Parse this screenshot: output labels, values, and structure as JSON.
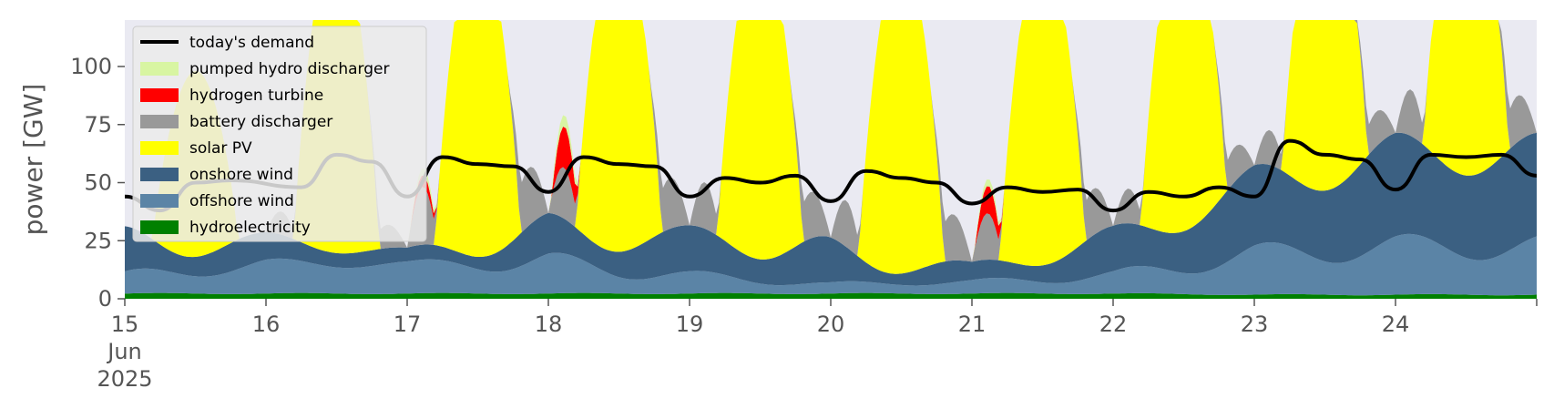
{
  "chart_data": {
    "type": "area",
    "title": "",
    "xlabel": "",
    "ylabel": "power [GW]",
    "ylim": [
      0,
      120
    ],
    "yticks": [
      0,
      25,
      50,
      75,
      100
    ],
    "x_start": "2025-06-15",
    "x_end": "2025-06-25",
    "xtick_labels": [
      "15",
      "16",
      "17",
      "18",
      "19",
      "20",
      "21",
      "22",
      "23",
      "24"
    ],
    "xtick_sublabels": [
      "Jun",
      "2025"
    ],
    "grid": false,
    "background_color": "#eaeaf2",
    "legend_position": "top-left",
    "demand_color": "#000000",
    "series": [
      {
        "name": "hydroelectricity",
        "color": "#008000",
        "role": "stack",
        "daily_max": [
          2.5,
          2.5,
          2.5,
          2.5,
          2.5,
          2.5,
          2.5,
          2.5,
          2.0,
          2.0
        ],
        "daily_min": [
          2.0,
          2.0,
          2.0,
          2.0,
          2.0,
          2.0,
          2.0,
          2.0,
          1.5,
          1.5
        ]
      },
      {
        "name": "offshore wind",
        "color": "#5b84a6",
        "role": "stack",
        "daily_max": [
          10,
          15,
          14,
          18,
          10,
          5,
          6,
          10,
          22,
          26
        ],
        "daily_min": [
          4,
          10,
          12,
          8,
          5,
          3,
          4,
          5,
          12,
          15
        ]
      },
      {
        "name": "onshore wind",
        "color": "#3b6082",
        "role": "stack",
        "daily_max": [
          20,
          12,
          6,
          18,
          20,
          20,
          8,
          20,
          35,
          45
        ],
        "daily_min": [
          8,
          8,
          4,
          6,
          15,
          5,
          4,
          10,
          25,
          35
        ]
      },
      {
        "name": "solar PV",
        "color": "#ffff00",
        "role": "stack",
        "daily_max": [
          80,
          140,
          140,
          140,
          140,
          140,
          140,
          140,
          140,
          140
        ],
        "daily_min": [
          0,
          0,
          0,
          0,
          0,
          0,
          0,
          0,
          0,
          0
        ]
      },
      {
        "name": "battery discharger",
        "color": "#999999",
        "role": "stack",
        "daily_max": [
          0,
          10,
          25,
          22,
          20,
          20,
          20,
          15,
          15,
          20
        ],
        "daily_min": [
          0,
          0,
          0,
          0,
          0,
          0,
          0,
          0,
          0,
          0
        ]
      },
      {
        "name": "hydrogen turbine",
        "color": "#ff0000",
        "role": "stack",
        "daily_max": [
          0,
          0,
          5,
          18,
          0,
          0,
          12,
          0,
          0,
          0
        ],
        "daily_min": [
          0,
          0,
          0,
          0,
          0,
          0,
          0,
          0,
          0,
          0
        ]
      },
      {
        "name": "pumped hydro discharger",
        "color": "#d8f5a2",
        "role": "stack",
        "daily_max": [
          0,
          0,
          3,
          5,
          0,
          0,
          3,
          0,
          0,
          0
        ],
        "daily_min": [
          0,
          0,
          0,
          0,
          0,
          0,
          0,
          0,
          0,
          0
        ]
      },
      {
        "name": "today's demand",
        "color": "#000000",
        "role": "line",
        "x": [
          "2025-06-15 00:00",
          "2025-06-15 06:00",
          "2025-06-15 12:00",
          "2025-06-15 18:00",
          "2025-06-16 06:00",
          "2025-06-16 12:00",
          "2025-06-16 18:00",
          "2025-06-17 00:00",
          "2025-06-17 06:00",
          "2025-06-17 12:00",
          "2025-06-17 18:00",
          "2025-06-18 00:00",
          "2025-06-18 06:00",
          "2025-06-18 12:00",
          "2025-06-18 18:00",
          "2025-06-19 00:00",
          "2025-06-19 06:00",
          "2025-06-19 12:00",
          "2025-06-19 18:00",
          "2025-06-20 00:00",
          "2025-06-20 06:00",
          "2025-06-20 12:00",
          "2025-06-20 18:00",
          "2025-06-21 00:00",
          "2025-06-21 06:00",
          "2025-06-21 12:00",
          "2025-06-21 18:00",
          "2025-06-22 00:00",
          "2025-06-22 06:00",
          "2025-06-22 12:00",
          "2025-06-22 18:00",
          "2025-06-23 00:00",
          "2025-06-23 06:00",
          "2025-06-23 12:00",
          "2025-06-23 18:00",
          "2025-06-24 00:00",
          "2025-06-24 06:00",
          "2025-06-24 12:00",
          "2025-06-24 18:00",
          "2025-06-25 00:00"
        ],
        "values": [
          44,
          38,
          50,
          51,
          48,
          62,
          59,
          44,
          61,
          58,
          57,
          46,
          61,
          58,
          57,
          44,
          52,
          50,
          53,
          42,
          55,
          52,
          50,
          41,
          48,
          46,
          47,
          38,
          46,
          44,
          48,
          44,
          68,
          62,
          60,
          47,
          62,
          61,
          62,
          53
        ]
      }
    ]
  }
}
